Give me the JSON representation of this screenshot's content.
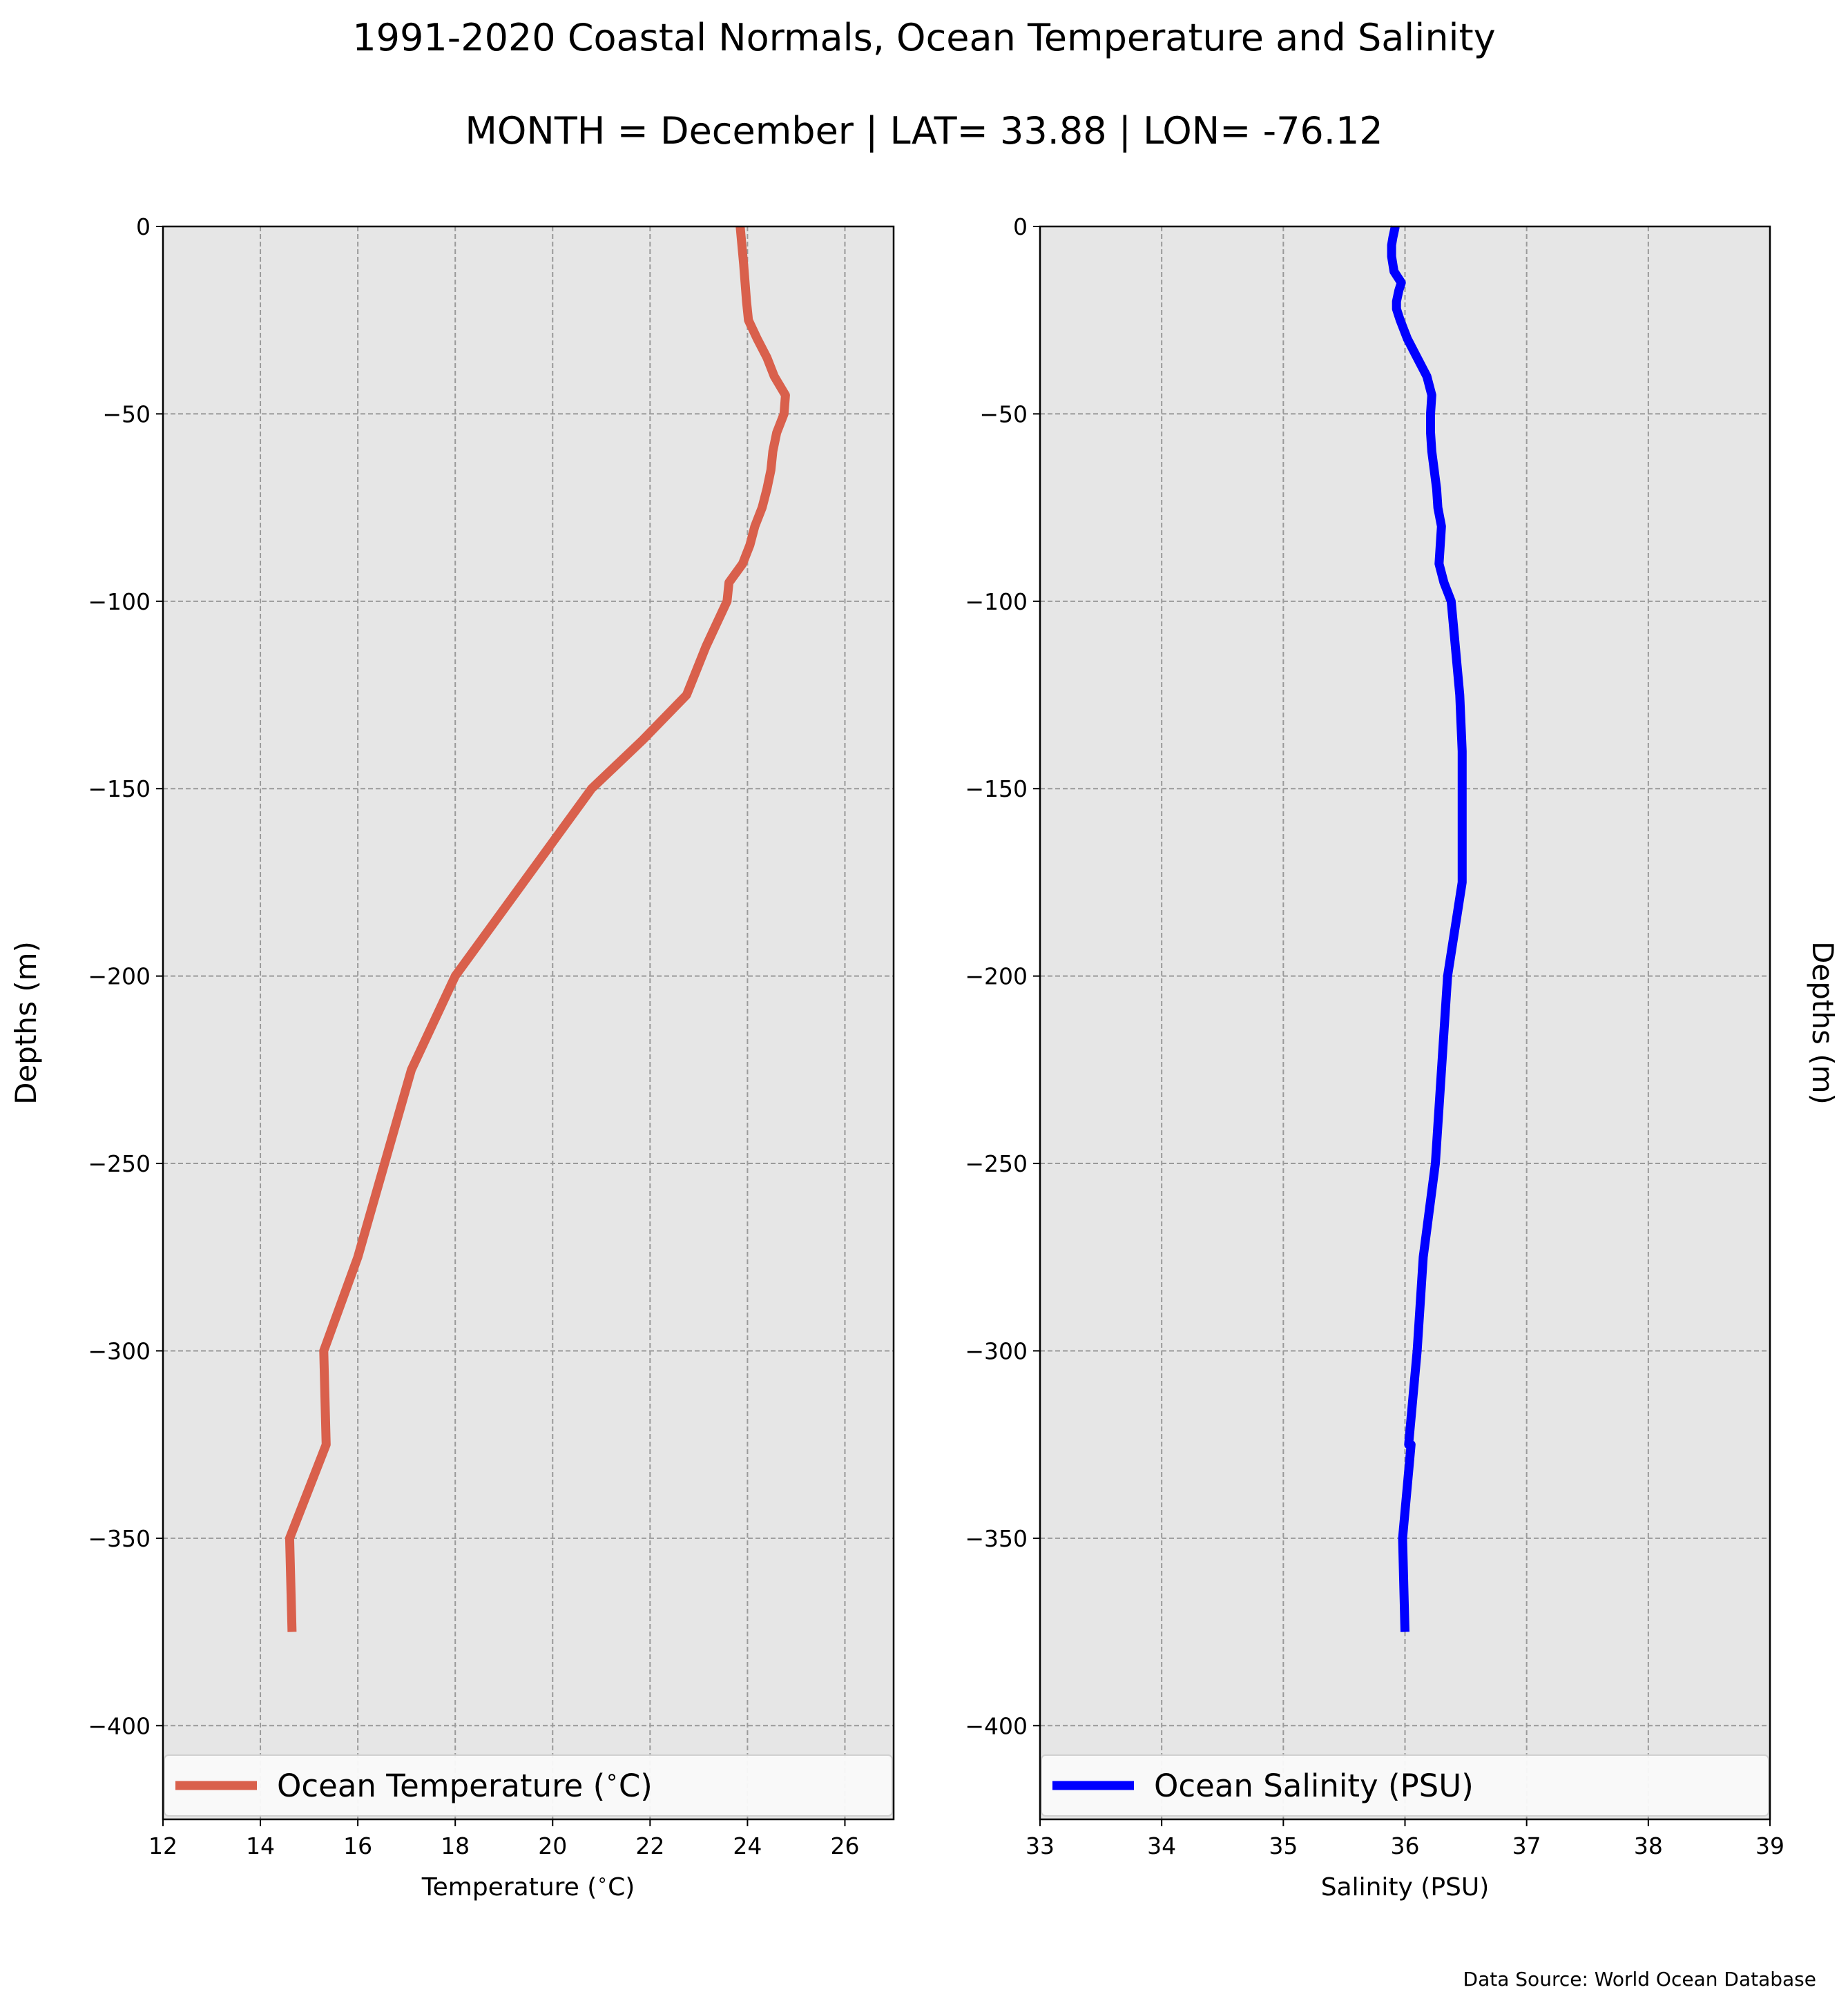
{
  "title": "1991-2020 Coastal Normals, Ocean Temperature and Salinity",
  "subtitle": "MONTH = December | LAT= 33.88 | LON= -76.12",
  "source": "Data Source: World Ocean Database",
  "colors": {
    "background": "#e6e6e6",
    "grid": "#9a9a9a",
    "temperature": "#d9604c",
    "salinity": "#0000ff"
  },
  "chart_data": [
    {
      "type": "line",
      "xlabel": "Temperature ($^\\circ$C)",
      "ylabel": "Depths (m)",
      "xlim": [
        12,
        27
      ],
      "ylim": [
        -425,
        0
      ],
      "xticks": [
        "12",
        "14",
        "16",
        "18",
        "20",
        "22",
        "24",
        "26"
      ],
      "yticks": [
        "0",
        "−50",
        "−100",
        "−150",
        "−200",
        "−250",
        "−300",
        "−350",
        "−400"
      ],
      "grid": true,
      "legend_position": "bottom",
      "series": [
        {
          "name": "Ocean Temperature ($^\\circ$C)",
          "color": "#d9604c",
          "x": [
            23.85,
            23.92,
            23.95,
            23.98,
            24.02,
            24.2,
            24.4,
            24.55,
            24.78,
            24.75,
            24.6,
            24.52,
            24.48,
            24.4,
            24.3,
            24.15,
            24.05,
            23.9,
            23.62,
            23.58,
            23.15,
            22.75,
            21.85,
            20.8,
            19.4,
            18.0,
            17.1,
            16.0,
            15.3,
            15.35,
            14.6,
            14.65
          ],
          "y": [
            0,
            -10,
            -15,
            -20,
            -25,
            -30,
            -35,
            -40,
            -45,
            -50,
            -55,
            -60,
            -65,
            -70,
            -75,
            -80,
            -85,
            -90,
            -95,
            -100,
            -112,
            -125,
            -137,
            -150,
            -175,
            -200,
            -225,
            -275,
            -300,
            -325,
            -350,
            -375
          ]
        }
      ]
    },
    {
      "type": "line",
      "xlabel": "Salinity (PSU)",
      "ylabel": "Depths (m)",
      "xlim": [
        33,
        39
      ],
      "ylim": [
        -425,
        0
      ],
      "xticks": [
        "33",
        "34",
        "35",
        "36",
        "37",
        "38",
        "39"
      ],
      "yticks": [
        "0",
        "−50",
        "−100",
        "−150",
        "−200",
        "−250",
        "−300",
        "−350",
        "−400"
      ],
      "grid": true,
      "legend_position": "bottom",
      "series": [
        {
          "name": "Ocean Salinity (PSU)",
          "color": "#0000ff",
          "x": [
            35.92,
            35.9,
            35.89,
            35.89,
            35.91,
            35.97,
            35.95,
            35.93,
            35.93,
            35.96,
            36.02,
            36.1,
            36.18,
            36.22,
            36.21,
            36.21,
            36.22,
            36.24,
            36.26,
            36.27,
            36.3,
            36.28,
            36.32,
            36.38,
            36.45,
            36.47,
            36.47,
            36.47,
            36.47,
            36.35,
            36.25,
            36.15,
            36.1,
            36.03,
            36.05,
            35.98,
            36.0
          ],
          "y": [
            0,
            -3,
            -5,
            -8,
            -12,
            -15,
            -17,
            -20,
            -22,
            -25,
            -30,
            -35,
            -40,
            -45,
            -50,
            -55,
            -60,
            -65,
            -70,
            -75,
            -80,
            -90,
            -95,
            -100,
            -125,
            -140,
            -150,
            -165,
            -175,
            -200,
            -250,
            -275,
            -300,
            -325,
            -325,
            -350,
            -375
          ]
        }
      ]
    }
  ]
}
